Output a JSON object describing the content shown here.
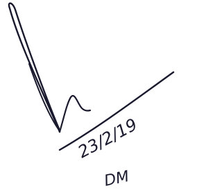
{
  "annotation": {
    "date": "23/2/19",
    "initials": "DM"
  }
}
